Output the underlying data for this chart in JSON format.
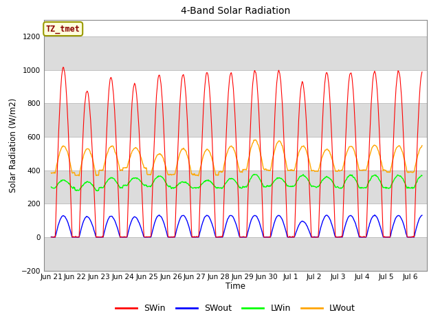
{
  "title": "4-Band Solar Radiation",
  "ylabel": "Solar Radiation (W/m2)",
  "xlabel": "Time",
  "annotation": "TZ_tmet",
  "annotation_color": "#8B0000",
  "annotation_bg": "#FFFFDD",
  "annotation_border": "#999900",
  "ylim": [
    -200,
    1300
  ],
  "yticks": [
    -200,
    0,
    200,
    400,
    600,
    800,
    1000,
    1200
  ],
  "colors": {
    "SWin": "#FF0000",
    "SWout": "#0000FF",
    "LWin": "#00FF00",
    "LWout": "#FFA500"
  },
  "plot_bg": "#FFFFFF",
  "band_color": "#DCDCDC",
  "grid_color": "#C0C0C0",
  "peak_SWin": [
    1070,
    960,
    1040,
    1050,
    1000,
    1000,
    1020,
    1010,
    1030,
    1030,
    1020,
    1010,
    1010,
    1010,
    1020
  ],
  "peak2_SWin": [
    960,
    780,
    860,
    760,
    940,
    945,
    950,
    950,
    960,
    960,
    820,
    960,
    960,
    970,
    960
  ],
  "peak_SWout": [
    135,
    135,
    135,
    135,
    135,
    135,
    135,
    135,
    135,
    135,
    100,
    135,
    135,
    135,
    135
  ],
  "peak2_SWout": [
    120,
    110,
    115,
    105,
    125,
    125,
    125,
    125,
    125,
    125,
    90,
    125,
    125,
    125,
    125
  ],
  "base_LWin": [
    295,
    280,
    295,
    310,
    305,
    295,
    295,
    295,
    300,
    305,
    305,
    300,
    295,
    295,
    295
  ],
  "peak_LWin": [
    340,
    330,
    355,
    355,
    365,
    330,
    340,
    350,
    375,
    355,
    370,
    360,
    370,
    370,
    370
  ],
  "base_LWout": [
    385,
    370,
    400,
    415,
    375,
    375,
    370,
    390,
    405,
    400,
    400,
    395,
    400,
    400,
    390
  ],
  "peak_LWout": [
    545,
    530,
    545,
    535,
    500,
    530,
    525,
    545,
    580,
    575,
    545,
    525,
    545,
    550,
    545
  ]
}
